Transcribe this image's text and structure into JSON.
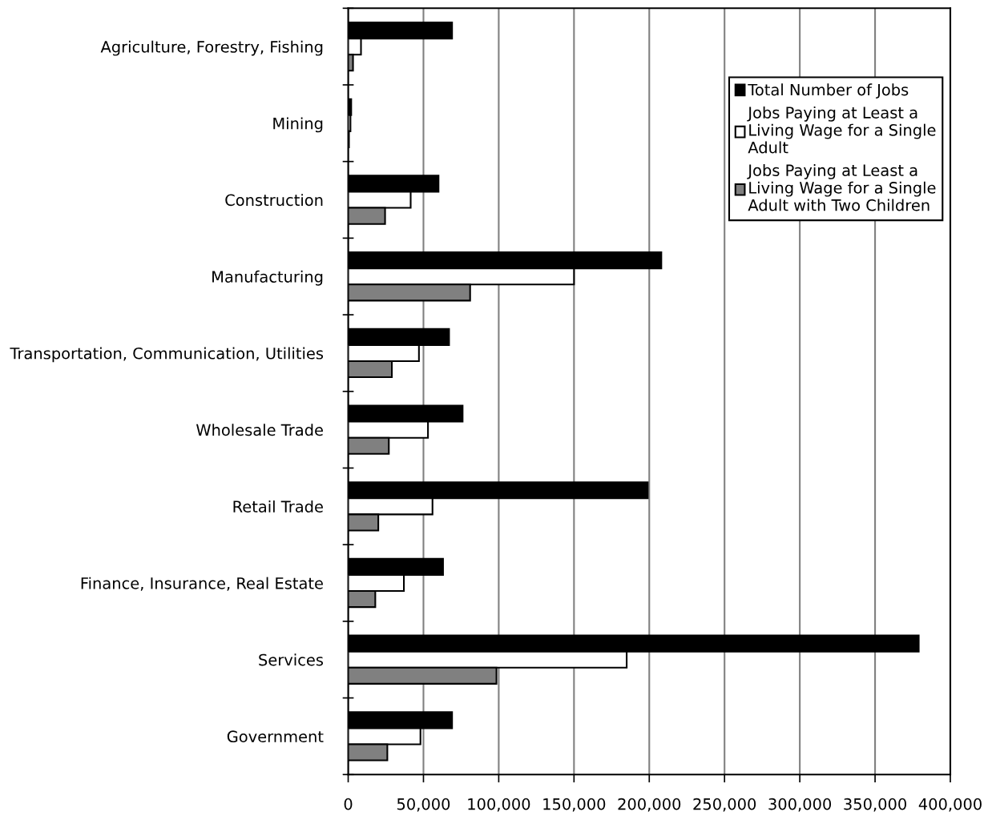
{
  "chart_data": {
    "type": "bar",
    "orientation": "horizontal",
    "categories": [
      "Agriculture, Forestry, Fishing",
      "Mining",
      "Construction",
      "Manufacturing",
      "Transportation, Communication, Utilities",
      "Wholesale Trade",
      "Retail Trade",
      "Finance, Insurance, Real Estate",
      "Services",
      "Government"
    ],
    "series": [
      {
        "name": "Total Number of Jobs",
        "color": "#000000",
        "values": [
          69000,
          2000,
          60000,
          208000,
          67000,
          76000,
          199000,
          63000,
          379000,
          69000
        ]
      },
      {
        "name": "Jobs Paying at Least a Living Wage for a Single Adult",
        "color": "#ffffff",
        "values": [
          8500,
          1500,
          41500,
          150000,
          47000,
          53000,
          56000,
          37000,
          185000,
          48000
        ]
      },
      {
        "name": "Jobs Paying at Least a Living Wage for a Single Adult with Two Children",
        "color": "#808080",
        "values": [
          3200,
          500,
          24500,
          81000,
          29000,
          27000,
          20000,
          18000,
          98500,
          26000
        ]
      }
    ],
    "xlim": [
      0,
      400000
    ],
    "xticks": [
      {
        "value": 0,
        "label": "0"
      },
      {
        "value": 50000,
        "label": "50,000"
      },
      {
        "value": 100000,
        "label": "100,000"
      },
      {
        "value": 150000,
        "label": "150,000"
      },
      {
        "value": 200000,
        "label": "200,000"
      },
      {
        "value": 250000,
        "label": "250,000"
      },
      {
        "value": 300000,
        "label": "300,000"
      },
      {
        "value": 350000,
        "label": "350,000"
      },
      {
        "value": 400000,
        "label": "400,000"
      }
    ],
    "grid": "x",
    "legend": "top right"
  }
}
